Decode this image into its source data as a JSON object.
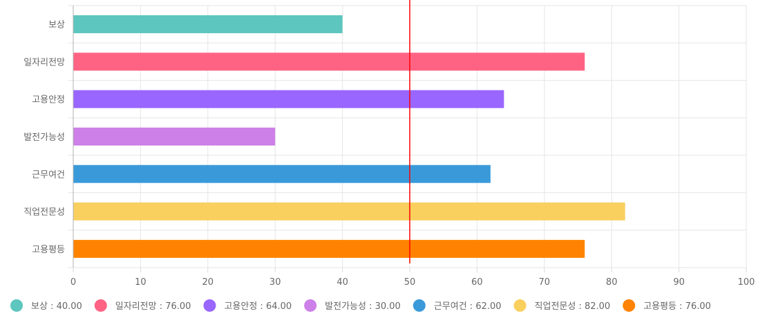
{
  "chart_data": {
    "type": "bar",
    "orientation": "horizontal",
    "categories": [
      "보상",
      "일자리전망",
      "고용안정",
      "발전가능성",
      "근무여건",
      "직업전문성",
      "고용평등"
    ],
    "values": [
      40,
      76,
      64,
      30,
      62,
      82,
      76
    ],
    "colors": [
      "#5cc6bf",
      "#ff6384",
      "#9966ff",
      "#cd80e8",
      "#3a9ad9",
      "#f9cf5e",
      "#ff8300"
    ],
    "xlim": [
      0,
      100
    ],
    "x_ticks": [
      0,
      10,
      20,
      30,
      40,
      50,
      60,
      70,
      80,
      90,
      100
    ],
    "reference_line": {
      "value": 50,
      "color": "#ff0000"
    },
    "grid": true,
    "legend": {
      "placement": "bottom",
      "items": [
        "보상 : 40.00",
        "일자리전망 : 76.00",
        "고용안정 : 64.00",
        "발전가능성 : 30.00",
        "근무여건 : 62.00",
        "직업전문성 : 82.00",
        "고용평등 : 76.00"
      ]
    }
  }
}
